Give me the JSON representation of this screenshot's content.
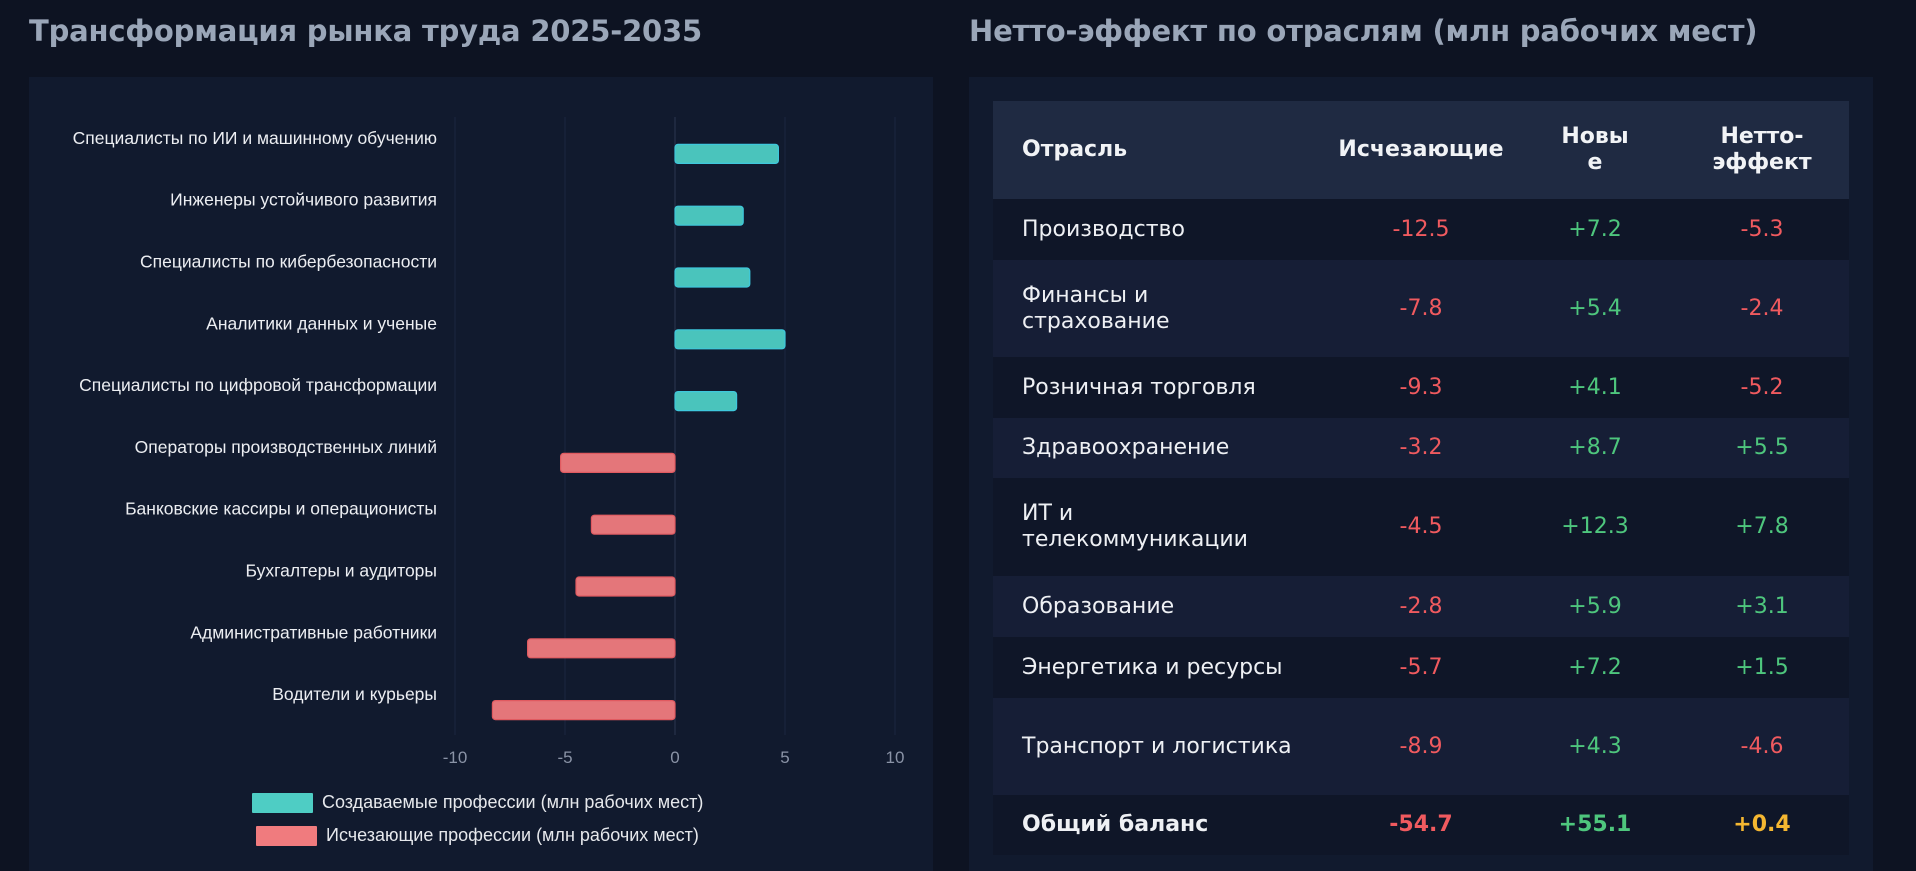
{
  "chart_panel": {
    "title": "Трансформация рынка труда 2025-2035"
  },
  "chart_data": {
    "type": "bar",
    "orientation": "horizontal",
    "categories": [
      "Специалисты по ИИ и машинному обучению",
      "Инженеры устойчивого развития",
      "Специалисты по кибербезопасности",
      "Аналитики данных и ученые",
      "Специалисты по цифровой трансформации",
      "Операторы производственных линий",
      "Банковские кассиры и операционисты",
      "Бухгалтеры и аудиторы",
      "Административные работники",
      "Водители и курьеры"
    ],
    "series": [
      {
        "name": "Создаваемые профессии (млн рабочих мест)",
        "color": "#4ecdc4",
        "values": [
          4.7,
          3.1,
          3.4,
          5.0,
          2.8,
          null,
          null,
          null,
          null,
          null
        ]
      },
      {
        "name": "Исчезающие профессии (млн рабочих мест)",
        "color": "#f07b7e",
        "values": [
          null,
          null,
          null,
          null,
          null,
          -5.2,
          -3.8,
          -4.5,
          -6.7,
          -8.3
        ]
      }
    ],
    "xlim": [
      -10,
      10
    ],
    "xticks": [
      -10,
      -5,
      0,
      5,
      10
    ],
    "grid": "x",
    "legend_position": "bottom",
    "xlabel": "",
    "ylabel": ""
  },
  "table_panel": {
    "title": "Нетто-эффект по отраслям (млн рабочих мест)",
    "headers": {
      "sector": "Отрасль",
      "lost": "Исчезающие",
      "new_part1": "Новы",
      "new_part2": "е",
      "net_part1": "Нетто-",
      "net_part2": "эффект"
    },
    "rows": [
      {
        "sector": "Производство",
        "lost": "-12.5",
        "new": "+7.2",
        "net": "-5.3"
      },
      {
        "sector_line1": "Финансы и",
        "sector_line2": "страхование",
        "lost": "-7.8",
        "new": "+5.4",
        "net": "-2.4"
      },
      {
        "sector": "Розничная торговля",
        "lost": "-9.3",
        "new": "+4.1",
        "net": "-5.2"
      },
      {
        "sector": "Здравоохранение",
        "lost": "-3.2",
        "new": "+8.7",
        "net": "+5.5"
      },
      {
        "sector_line1": "ИТ и",
        "sector_line2": "телекоммуникации",
        "lost": "-4.5",
        "new": "+12.3",
        "net": "+7.8"
      },
      {
        "sector": "Образование",
        "lost": "-2.8",
        "new": "+5.9",
        "net": "+3.1"
      },
      {
        "sector": "Энергетика и ресурсы",
        "lost": "-5.7",
        "new": "+7.2",
        "net": "+1.5"
      },
      {
        "sector": "Транспорт и логистика",
        "lost": "-8.9",
        "new": "+4.3",
        "net": "-4.6"
      }
    ],
    "total": {
      "label": "Общий баланс",
      "lost": "-54.7",
      "new": "+55.1",
      "net": "+0.4"
    },
    "colors": {
      "negative": "#f05a5f",
      "positive": "#4ec67d",
      "balance": "#f5b731"
    }
  }
}
